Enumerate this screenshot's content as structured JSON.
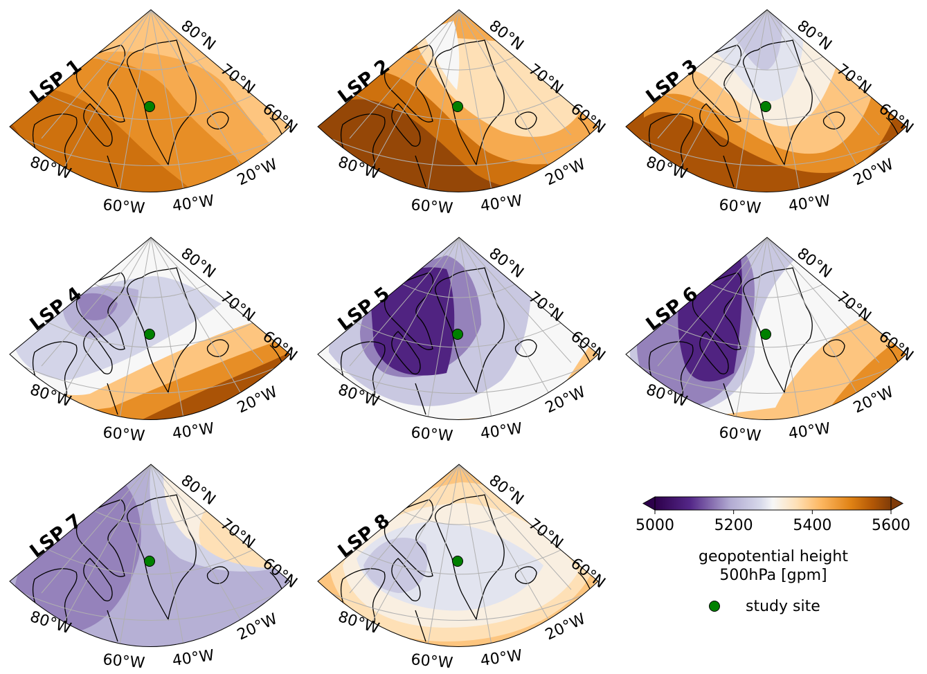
{
  "chart_data": {
    "type": "heatmap",
    "title": "",
    "description": "Eight polar-stereographic map panels of 500 hPa geopotential height composites (LSP 1–8) over Greenland / Canadian Arctic / Iceland, filled contours, with shared colorbar",
    "panels": [
      {
        "id": "LSP 1",
        "label": "LSP 1",
        "field_summary": "entirely orange/brown; ~5500–5560 gpm in west/south (Canadian Arctic, Baffin), ~5420–5460 gpm toward NE/Iceland",
        "bands": [
          {
            "level": 5560,
            "region": "far west edge"
          },
          {
            "level": 5520,
            "region": "west & south"
          },
          {
            "level": 5480,
            "region": "central Greenland"
          },
          {
            "level": 5440,
            "region": "east / Iceland"
          },
          {
            "level": 5400,
            "region": "northeast tip"
          }
        ]
      },
      {
        "id": "LSP 2",
        "label": "LSP 2",
        "field_summary": "light orange ridge over Greenland & Iceland (~5320–5360 gpm), near-white over N Baffin; darker brown in SW (~5560 gpm)",
        "bands": [
          {
            "level": 5300,
            "region": "north Baffin / Ellesmere"
          },
          {
            "level": 5360,
            "region": "Greenland & Iceland"
          },
          {
            "level": 5440,
            "region": "ring"
          },
          {
            "level": 5520,
            "region": "southwest"
          },
          {
            "level": 5580,
            "region": "far SW corner"
          }
        ]
      },
      {
        "id": "LSP 3",
        "label": "LSP 3",
        "field_summary": "lavender near pole (~5240–5280 gpm), cream over N Greenland, orange increasing to the south and southeast (~5560 gpm)",
        "bands": [
          {
            "level": 5240,
            "region": "pole"
          },
          {
            "level": 5280,
            "region": "north Greenland"
          },
          {
            "level": 5320,
            "region": "central"
          },
          {
            "level": 5400,
            "region": "south"
          },
          {
            "level": 5480,
            "region": "southeast"
          },
          {
            "level": 5560,
            "region": "far SE (Scandinavia)"
          }
        ]
      },
      {
        "id": "LSP 4",
        "label": "LSP 4",
        "field_summary": "purple trough over Canadian Arctic (~5160 gpm), lavender over Greenland, cream band, strong orange/brown gradient in SE (~5560 gpm)",
        "bands": [
          {
            "level": 5160,
            "region": "Ellesmere/Baffin"
          },
          {
            "level": 5200,
            "region": "north"
          },
          {
            "level": 5260,
            "region": "central Greenland"
          },
          {
            "level": 5300,
            "region": "south Greenland band"
          },
          {
            "level": 5400,
            "region": "south"
          },
          {
            "level": 5480,
            "region": "southeast"
          },
          {
            "level": 5560,
            "region": "far SE"
          }
        ]
      },
      {
        "id": "LSP 5",
        "label": "LSP 5",
        "field_summary": "deep purple trough centred over Baffin Bay / W Greenland (~5080 gpm), lavender outwards, cream then orange/brown in far SE",
        "bands": [
          {
            "level": 5080,
            "region": "Baffin Bay core"
          },
          {
            "level": 5160,
            "region": "surrounding"
          },
          {
            "level": 5240,
            "region": "outer"
          },
          {
            "level": 5300,
            "region": "edges"
          },
          {
            "level": 5400,
            "region": "east of Iceland"
          },
          {
            "level": 5480,
            "region": "SE"
          },
          {
            "level": 5560,
            "region": "far SE corner"
          }
        ]
      },
      {
        "id": "LSP 6",
        "label": "LSP 6",
        "field_summary": "deep purple trough over Canadian Arctic (~5080 gpm), lavender over W Greenland, cream over E Greenland, orange/brown ridge over Iceland and SE (~5560 gpm)",
        "bands": [
          {
            "level": 5080,
            "region": "Canadian Arctic"
          },
          {
            "level": 5160,
            "region": "Baffin Bay"
          },
          {
            "level": 5240,
            "region": "west Greenland"
          },
          {
            "level": 5300,
            "region": "east Greenland"
          },
          {
            "level": 5400,
            "region": "Denmark Strait"
          },
          {
            "level": 5480,
            "region": "Iceland"
          },
          {
            "level": 5560,
            "region": "SE"
          }
        ]
      },
      {
        "id": "LSP 7",
        "label": "LSP 7",
        "field_summary": "moderate purple trough over SW Canadian Arctic (~5160 gpm), light lavender over W Greenland, cream/light orange over E Greenland & Iceland (~5360–5400 gpm)",
        "bands": [
          {
            "level": 5160,
            "region": "SW Canadian Arctic"
          },
          {
            "level": 5200,
            "region": "surrounding"
          },
          {
            "level": 5260,
            "region": "west Greenland"
          },
          {
            "level": 5320,
            "region": "east Greenland"
          },
          {
            "level": 5360,
            "region": "Iceland region"
          },
          {
            "level": 5420,
            "region": "far SE"
          }
        ]
      },
      {
        "id": "LSP 8",
        "label": "LSP 8",
        "field_summary": "weak anomalies; pale lavender over Canadian Arctic (~5240 gpm), near-white over Greenland, light orange around margins (~5360–5400 gpm)",
        "bands": [
          {
            "level": 5240,
            "region": "Canadian Arctic"
          },
          {
            "level": 5280,
            "region": "Greenland"
          },
          {
            "level": 5320,
            "region": "ring"
          },
          {
            "level": 5360,
            "region": "margins / north"
          },
          {
            "level": 5420,
            "region": "far corners"
          }
        ]
      }
    ],
    "latitude_labels": [
      "80°N",
      "70°N",
      "60°N"
    ],
    "longitude_labels": [
      "80°W",
      "60°W",
      "40°W",
      "20°W"
    ],
    "colorbar": {
      "colormap": "PuOr_r",
      "ticks": [
        5000,
        5200,
        5400,
        5600
      ],
      "range": [
        5000,
        5600
      ],
      "extend": "both",
      "label_line1": "geopotential height",
      "label_line2": "500hPa [gpm]"
    },
    "legend": {
      "entries": [
        {
          "label": "study site",
          "marker": "circle",
          "color": "#008000"
        }
      ],
      "placement": "bottom-right"
    },
    "study_site": {
      "lat": 72.5,
      "lon": -54.5,
      "color": "#008000"
    }
  },
  "colors": {
    "marker": "#008000",
    "gridline": "#b0b0b0",
    "coastline": "#000000"
  }
}
